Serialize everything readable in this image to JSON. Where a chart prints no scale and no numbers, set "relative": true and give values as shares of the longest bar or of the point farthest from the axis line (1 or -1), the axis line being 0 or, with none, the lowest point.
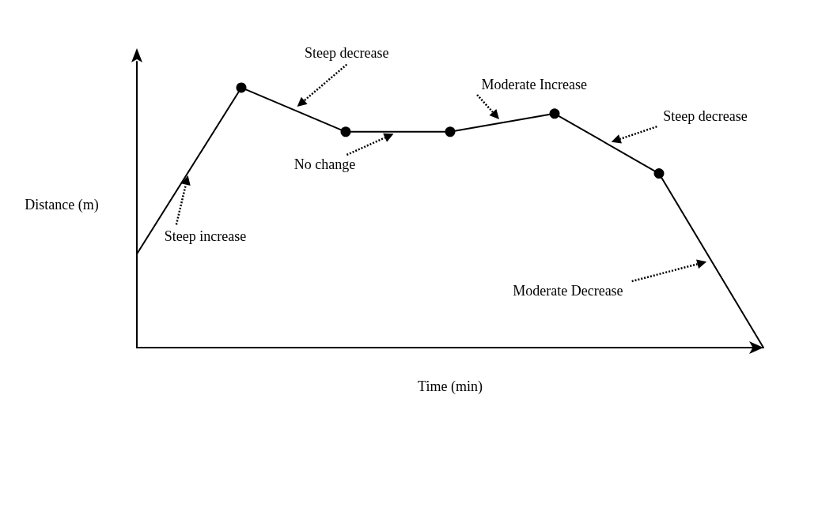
{
  "chart_data": {
    "type": "line",
    "relative": true,
    "xlabel": "Time (min)",
    "ylabel": "Distance (m)",
    "categories": [
      null,
      null,
      null,
      null,
      null,
      null,
      null
    ],
    "series": [
      {
        "color": "#000000",
        "values": [
          0.36,
          1,
          0.83,
          0.83,
          0.9,
          0.67,
          0
        ]
      }
    ],
    "marker": "circle",
    "line_style": "solid",
    "grid": false,
    "annotations": [
      "Steep decrease",
      "Moderate Increase",
      "No change",
      "Steep decrease",
      "Moderate Decrease",
      "Steep increase"
    ]
  }
}
